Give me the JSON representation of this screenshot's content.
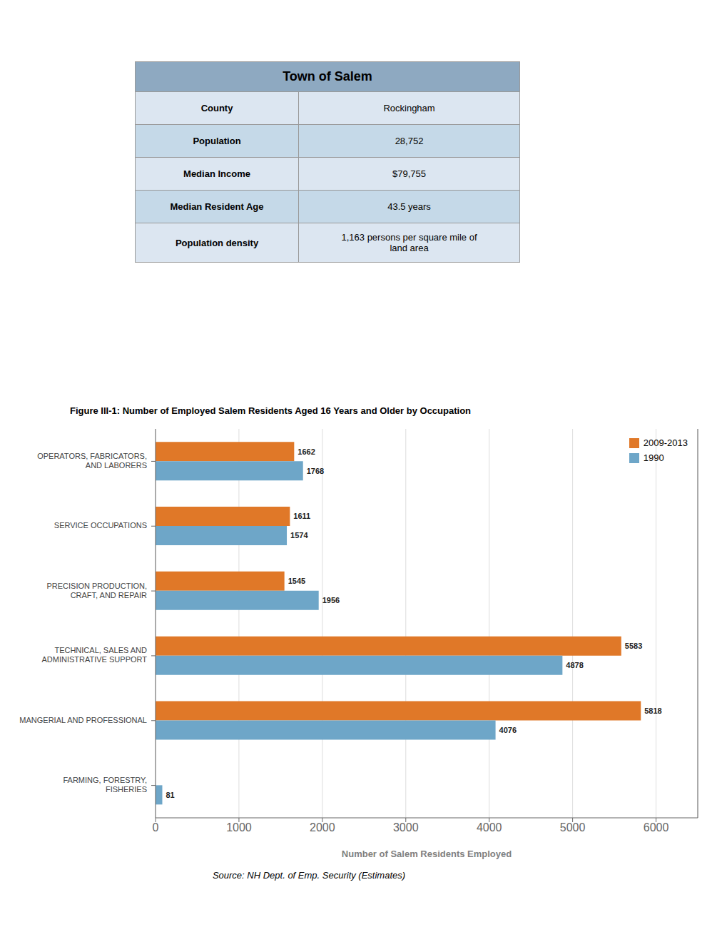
{
  "table": {
    "title": "Town of Salem",
    "rows": [
      {
        "label": "County",
        "value": "Rockingham"
      },
      {
        "label": "Population",
        "value": "28,752"
      },
      {
        "label": "Median Income",
        "value": "$79,755"
      },
      {
        "label": "Median Resident Age",
        "value": "43.5 years"
      },
      {
        "label": "Population density",
        "value": "1,163 persons per square mile of\nland area"
      }
    ],
    "color": "#8EA9C1",
    "colors": [
      "#DCE6F1",
      "#C5D9E8",
      "#DCE6F1",
      "#C5D9E8",
      "#DCE6F1"
    ]
  },
  "chart_data": {
    "type": "bar",
    "orientation": "horizontal",
    "title": "Figure III-1:  Number of Employed Salem Residents Aged 16 Years and Older by Occupation",
    "categories": [
      "OPERATORS, FABRICATORS, AND LABORERS",
      "SERVICE OCCUPATIONS",
      "PRECISION PRODUCTION, CRAFT, AND REPAIR",
      "TECHNICAL, SALES AND ADMINISTRATIVE SUPPORT",
      "MANGERIAL AND PROFESSIONAL",
      "FARMING, FORESTRY, FISHERIES"
    ],
    "series": [
      {
        "name": "2009-2013",
        "color": "#E07828",
        "values": [
          1662,
          1611,
          1545,
          5583,
          5818,
          0
        ]
      },
      {
        "name": "1990",
        "color": "#6EA6C8",
        "values": [
          1768,
          1574,
          1956,
          4878,
          4076,
          81
        ]
      }
    ],
    "xlabel": "Number of Salem Residents Employed",
    "xlim": [
      0,
      6500
    ],
    "xticks": [
      0,
      1000,
      2000,
      3000,
      4000,
      5000,
      6000
    ],
    "grid": true,
    "legend": "upper right",
    "data_labels": true,
    "source": "Source:  NH Dept. of Emp. Security (Estimates)"
  }
}
